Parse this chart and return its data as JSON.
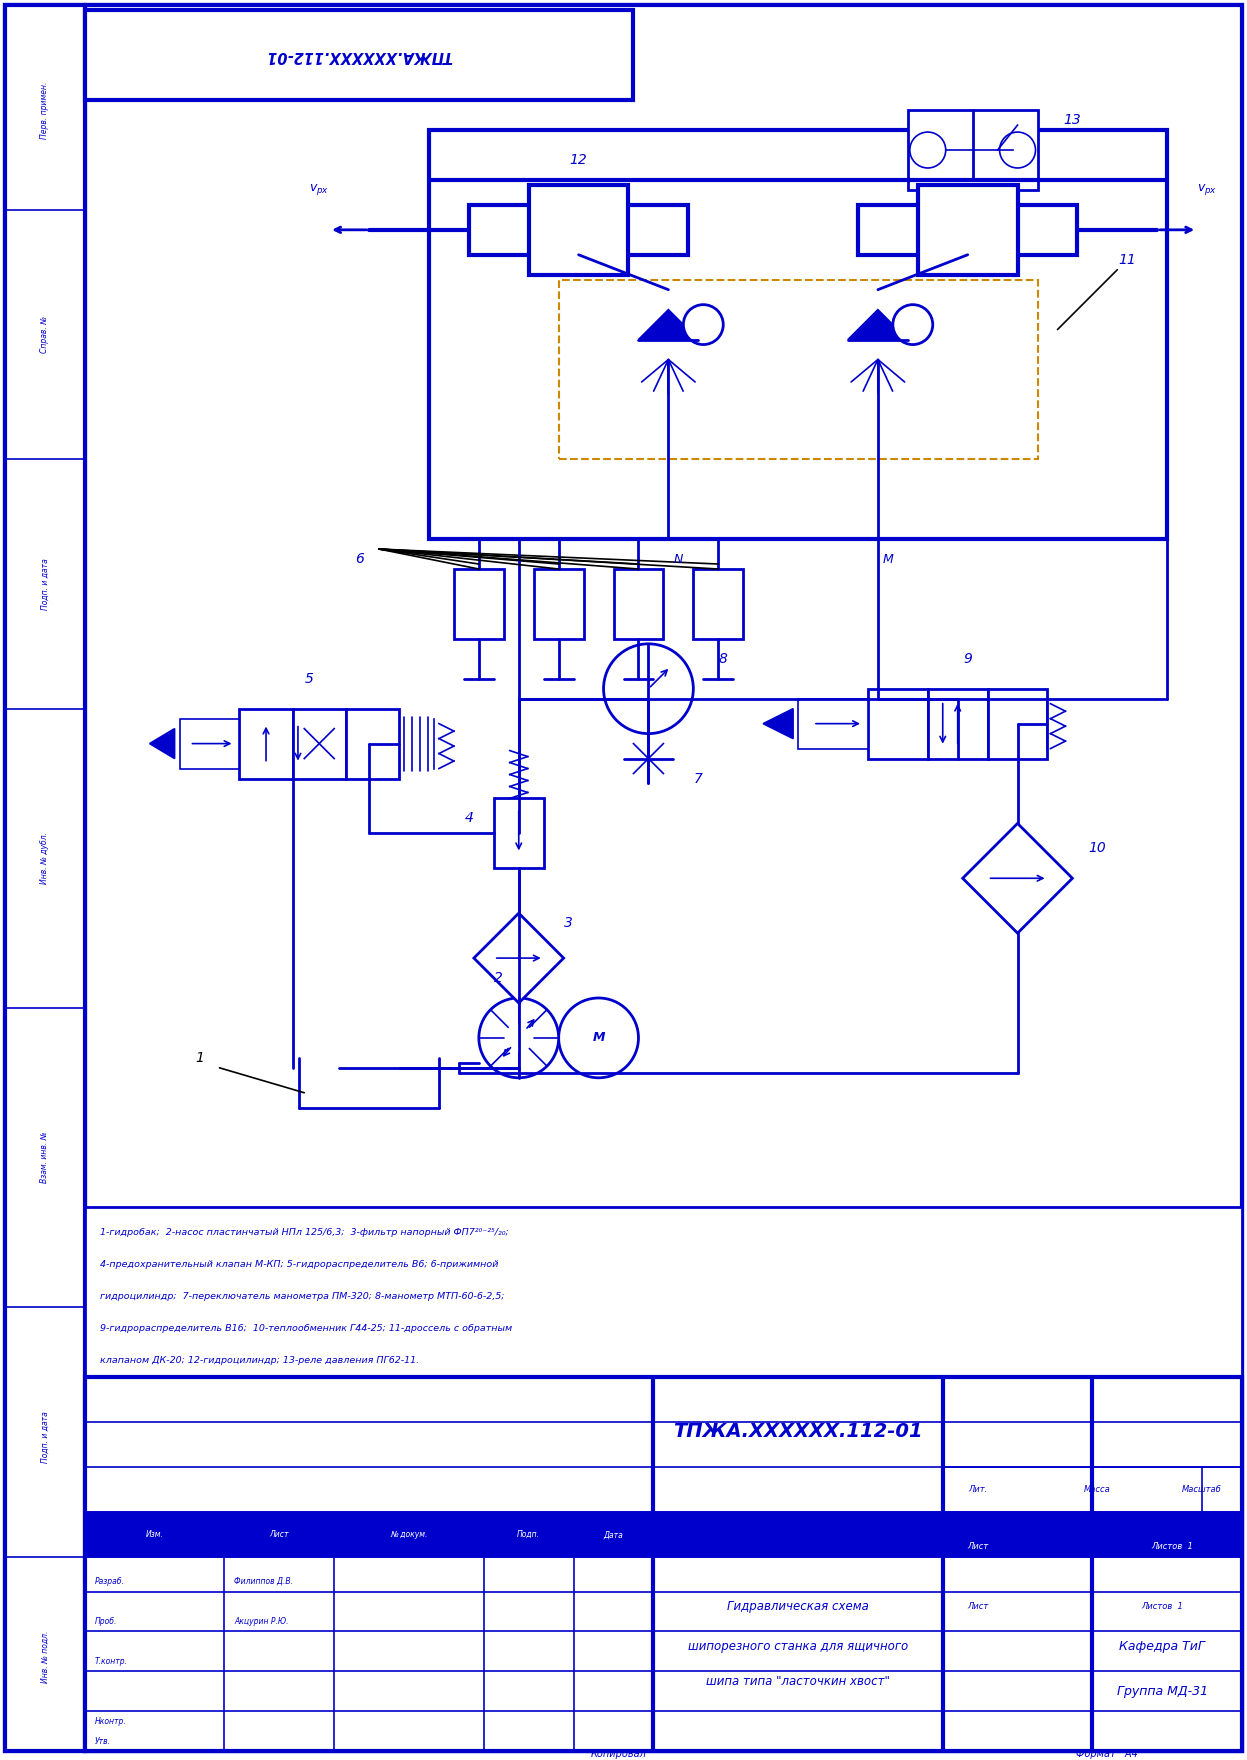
{
  "bg_color": "#FFFFFF",
  "line_color": "#0000CC",
  "black_color": "#000000",
  "orange_color": "#CC8800",
  "page_width": 12.47,
  "page_height": 17.6,
  "rotated_text": "ТПЖА.XXXXXX.112-01",
  "doc_number": "ТПЖА.XXXXXX.112-01",
  "title_line1": "Гидравлическая схема",
  "title_line2": "шипорезного станка для ящичного",
  "title_line3": "шипа типа \"ласточкин хвост\"",
  "razrab_label": "Разраб.",
  "razrab_name": "Филиппов Д.В.",
  "prob_label": "Проб.",
  "prob_name": "Акцурин Р.Ю.",
  "tkont_label": "Т.контр.",
  "nkont_label": "Нконтр.",
  "utv_label": "Утв.",
  "kafedra": "Кафедра ТиГ",
  "gruppa": "Группа МД-31",
  "format_text": "Формат   А4",
  "kopioval": "Копировал",
  "lit_label": "Лит.",
  "massa_label": "Масса",
  "masshtab_label": "Масштаб",
  "list_label": "Лист",
  "listov_label": "Листов",
  "listov_num": "1",
  "izm_label": "Изм.",
  "list2_label": "Лист",
  "docnum_label": "№ докум.",
  "podp_label": "Подп.",
  "data_label": "Дата",
  "side_labels": [
    "Перв. примен.",
    "Справ. №",
    "Подп. и дата",
    "Инв. № дубл.",
    "Взам. инв. №",
    "Подп. и дата",
    "Инв. № подл."
  ],
  "desc_line1": "1-гидробак;  2-насос пластинчатый НПл 125/6,3;  3-фильтр напорный ФП7",
  "desc_frac": "20-25",
  "desc_frac2": "20",
  "desc_line2": ";",
  "desc_line3": "4-предохранительный клапан М-КП; 5-гидрораспределитель В6; 6-прижимной",
  "desc_line4": "гидроцилиндр;  7-переключатель манометра ПМ-320; 8-манометр МТП-60-6-2,5;",
  "desc_line5": "9-гидрораспределитель В16;  10-теплообменник Г44-25; 11-дроссель с обратным",
  "desc_line6": "клапаном ДК-20; 12-гидроцилиндр; 13-реле давления ПГ62-11."
}
